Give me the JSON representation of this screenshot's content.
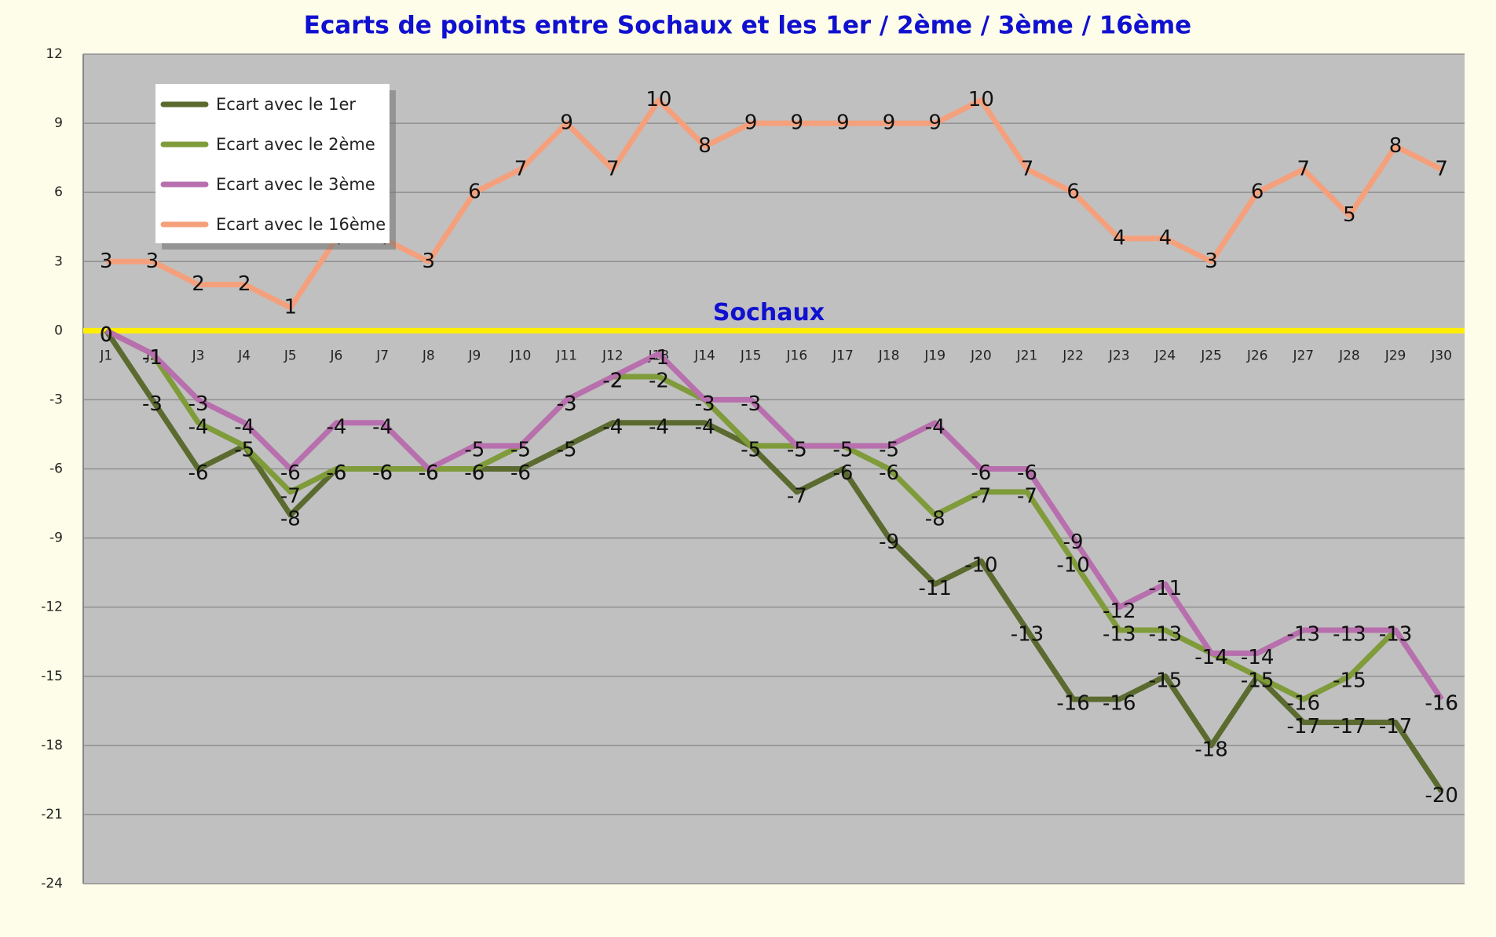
{
  "chart_data": {
    "type": "line",
    "title": "Ecarts de points entre Sochaux et les 1er / 2ème / 3ème / 16ème",
    "annotation": "Sochaux",
    "categories": [
      "J1",
      "J2",
      "J3",
      "J4",
      "J5",
      "J6",
      "J7",
      "J8",
      "J9",
      "J10",
      "J11",
      "J12",
      "J13",
      "J14",
      "J15",
      "J16",
      "J17",
      "J18",
      "J19",
      "J20",
      "J21",
      "J22",
      "J23",
      "J24",
      "J25",
      "J26",
      "J27",
      "J28",
      "J29",
      "J30"
    ],
    "series": [
      {
        "name": "Ecart avec le 1er",
        "color": "#5b6b30",
        "values": [
          0,
          -3,
          -6,
          -5,
          -8,
          -6,
          -6,
          -6,
          -6,
          -6,
          -5,
          -4,
          -4,
          -4,
          -5,
          -7,
          -6,
          -9,
          -11,
          -10,
          -13,
          -16,
          -16,
          -15,
          -18,
          -15,
          -17,
          -17,
          -17,
          -20
        ]
      },
      {
        "name": "Ecart avec le 2ème",
        "color": "#7f9b3a",
        "values": [
          0,
          -1,
          -4,
          -5,
          -7,
          -6,
          -6,
          -6,
          -6,
          -5,
          -3,
          -2,
          -2,
          -3,
          -5,
          -5,
          -5,
          -6,
          -8,
          -7,
          -7,
          -10,
          -13,
          -13,
          -14,
          -15,
          -16,
          -15,
          -13,
          -16
        ]
      },
      {
        "name": "Ecart avec le 3ème",
        "color": "#b86fae",
        "values": [
          0,
          -1,
          -3,
          -4,
          -6,
          -4,
          -4,
          -6,
          -5,
          -5,
          -3,
          -2,
          -1,
          -3,
          -3,
          -5,
          -5,
          -5,
          -4,
          -6,
          -6,
          -9,
          -12,
          -11,
          -14,
          -14,
          -13,
          -13,
          -13,
          -16
        ]
      },
      {
        "name": "Ecart avec le 16ème",
        "color": "#f5a07c",
        "values": [
          3,
          3,
          2,
          2,
          1,
          4,
          4,
          3,
          6,
          7,
          9,
          7,
          10,
          8,
          9,
          9,
          9,
          9,
          9,
          10,
          7,
          6,
          4,
          4,
          3,
          6,
          7,
          5,
          8,
          7
        ]
      }
    ],
    "ylim": [
      -24,
      12
    ],
    "yticks": [
      -24,
      -21,
      -18,
      -15,
      -12,
      -9,
      -6,
      -3,
      0,
      3,
      6,
      9,
      12
    ],
    "grid": true,
    "zero_line_color": "#ffee00",
    "legend": "top-left"
  }
}
